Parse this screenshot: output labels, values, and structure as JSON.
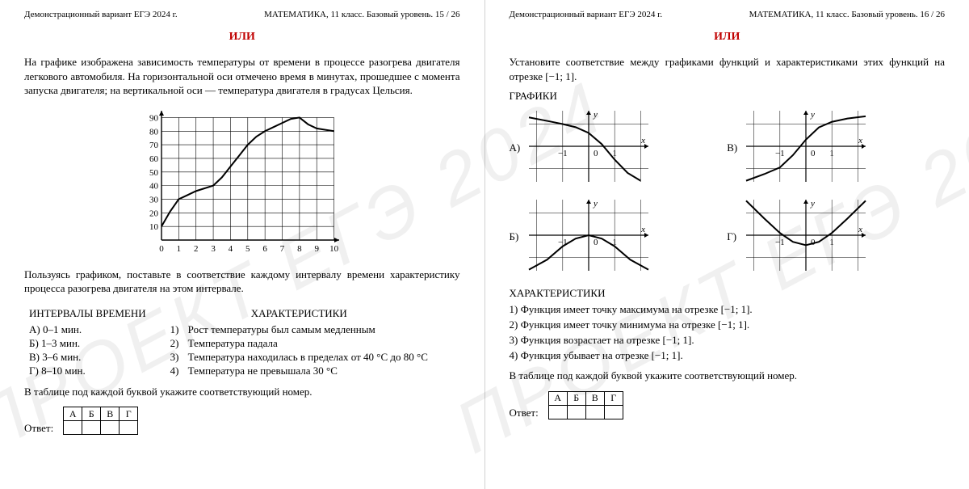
{
  "left": {
    "header_left": "Демонстрационный вариант ЕГЭ 2024 г.",
    "header_right": "МАТЕМАТИКА, 11 класс. Базовый уровень. 15 / 26",
    "ili": "ИЛИ",
    "task_text": "На графике изображена зависимость температуры от времени в процессе разогрева двигателя легкового автомобиля. На горизонтальной оси отмечено время в минутах, прошедшее с момента запуска двигателя; на вертикальной оси — температура двигателя в градусах Цельсия.",
    "chart": {
      "type": "line",
      "x_ticks": [
        0,
        1,
        2,
        3,
        4,
        5,
        6,
        7,
        8,
        9,
        10
      ],
      "y_ticks": [
        0,
        10,
        20,
        30,
        40,
        50,
        60,
        70,
        80,
        90
      ],
      "xlim": [
        0,
        10.3
      ],
      "ylim": [
        0,
        95
      ],
      "background_color": "#ffffff",
      "grid_color": "#000000",
      "line_color": "#000000",
      "line_width": 2,
      "axis_fontsize": 11,
      "points": [
        [
          0,
          10
        ],
        [
          0.5,
          21
        ],
        [
          1,
          30
        ],
        [
          1.5,
          33
        ],
        [
          2,
          36
        ],
        [
          2.5,
          38
        ],
        [
          3,
          40
        ],
        [
          3.5,
          46
        ],
        [
          4,
          54
        ],
        [
          4.5,
          62
        ],
        [
          5,
          70
        ],
        [
          5.5,
          76
        ],
        [
          6,
          80
        ],
        [
          6.5,
          83
        ],
        [
          7,
          86
        ],
        [
          7.5,
          89
        ],
        [
          8,
          90
        ],
        [
          8.5,
          85
        ],
        [
          9,
          82
        ],
        [
          9.5,
          81
        ],
        [
          10,
          80
        ]
      ]
    },
    "after_chart": "Пользуясь графиком, поставьте в соответствие каждому интервалу времени характеристику процесса разогрева двигателя на этом интервале.",
    "intervals_title": "ИНТЕРВАЛЫ ВРЕМЕНИ",
    "characteristics_title": "ХАРАКТЕРИСТИКИ",
    "intervals": [
      {
        "letter": "А)",
        "text": "0–1 мин."
      },
      {
        "letter": "Б)",
        "text": "1–3 мин."
      },
      {
        "letter": "В)",
        "text": "3–6 мин."
      },
      {
        "letter": "Г)",
        "text": "8–10 мин."
      }
    ],
    "characteristics": [
      {
        "num": "1)",
        "text": "Рост температуры был самым медленным"
      },
      {
        "num": "2)",
        "text": "Температура падала"
      },
      {
        "num": "3)",
        "text": "Температура находилась в пределах от 40 °C до 80 °C"
      },
      {
        "num": "4)",
        "text": "Температура не превышала 30 °C"
      }
    ],
    "table_instruction": "В таблице под каждой буквой укажите соответствующий номер.",
    "answer_label": "Ответ:",
    "table_headers": [
      "А",
      "Б",
      "В",
      "Г"
    ],
    "watermark": "ПРОЕКТ   ЕГЭ   2024"
  },
  "right": {
    "header_left": "Демонстрационный вариант ЕГЭ 2024 г.",
    "header_right": "МАТЕМАТИКА, 11 класс. Базовый уровень. 16 / 26",
    "ili": "ИЛИ",
    "task_text": "Установите соответствие между графиками функций и характеристиками этих функций на отрезке [−1; 1].",
    "graphs_title": "ГРАФИКИ",
    "graph_labels": {
      "a": "А)",
      "b": "Б)",
      "v": "В)",
      "g": "Г)"
    },
    "mini": {
      "width": 160,
      "height": 100,
      "xlim": [
        -2.3,
        2.3
      ],
      "ylim": [
        -1.6,
        1.6
      ],
      "x_ticks_labeled": [
        -1,
        0,
        1
      ],
      "grid_color": "#000000",
      "line_color": "#000000",
      "line_width": 2,
      "axis_fontsize": 11,
      "axis_labels": {
        "x": "x",
        "y": "y"
      }
    },
    "graphA_pts": [
      [
        -2.3,
        1.3
      ],
      [
        -1.5,
        1.12
      ],
      [
        -1,
        1.0
      ],
      [
        -0.5,
        0.86
      ],
      [
        0,
        0.6
      ],
      [
        0.5,
        0.1
      ],
      [
        1,
        -0.6
      ],
      [
        1.5,
        -1.2
      ],
      [
        2.0,
        -1.55
      ]
    ],
    "graphB_pts": [
      [
        -2.3,
        -1.55
      ],
      [
        -1.6,
        -1.1
      ],
      [
        -1,
        -0.5
      ],
      [
        -0.5,
        -0.15
      ],
      [
        0,
        0
      ],
      [
        0.5,
        -0.15
      ],
      [
        1,
        -0.5
      ],
      [
        1.6,
        -1.1
      ],
      [
        2.3,
        -1.55
      ]
    ],
    "graphV_pts": [
      [
        -2.3,
        -1.55
      ],
      [
        -1.6,
        -1.25
      ],
      [
        -1,
        -0.95
      ],
      [
        -0.5,
        -0.4
      ],
      [
        0,
        0.3
      ],
      [
        0.5,
        0.85
      ],
      [
        1,
        1.1
      ],
      [
        1.6,
        1.25
      ],
      [
        2.3,
        1.35
      ]
    ],
    "graphG_pts": [
      [
        -2.3,
        1.55
      ],
      [
        -1.6,
        0.75
      ],
      [
        -1,
        0.1
      ],
      [
        -0.5,
        -0.3
      ],
      [
        0,
        -0.45
      ],
      [
        0.5,
        -0.3
      ],
      [
        1,
        0.1
      ],
      [
        1.6,
        0.75
      ],
      [
        2.3,
        1.55
      ]
    ],
    "characteristics_title": "ХАРАКТЕРИСТИКИ",
    "characteristics": [
      {
        "num": "1)",
        "text": "Функция имеет точку максимума на отрезке [−1; 1]."
      },
      {
        "num": "2)",
        "text": "Функция имеет точку минимума на отрезке [−1; 1]."
      },
      {
        "num": "3)",
        "text": "Функция возрастает на отрезке [−1; 1]."
      },
      {
        "num": "4)",
        "text": "Функция убывает на отрезке [−1; 1]."
      }
    ],
    "table_instruction": "В таблице под каждой буквой укажите соответствующий номер.",
    "answer_label": "Ответ:",
    "table_headers": [
      "А",
      "Б",
      "В",
      "Г"
    ],
    "watermark": "ПРОЕКТ   ЕГЭ   2024"
  }
}
